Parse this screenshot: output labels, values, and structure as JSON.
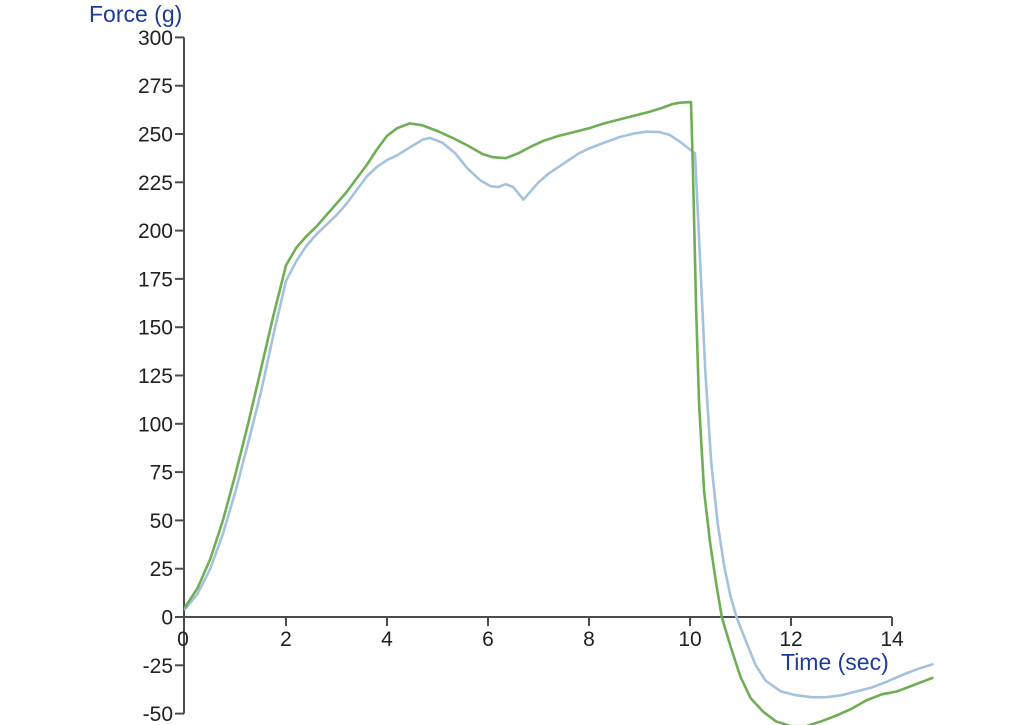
{
  "chart_data": {
    "type": "line",
    "title": "",
    "ylabel": "Force (g)",
    "xlabel": "Time (sec)",
    "label_color": "#1e3c96",
    "axis_color": "#4b4c4e",
    "tick_label_color": "#232021",
    "background_color": "#ffffff",
    "grid": false,
    "legend": "none",
    "xlim": [
      0,
      14.8
    ],
    "ylim": [
      -50,
      300
    ],
    "x_ticks": [
      0,
      2,
      4,
      6,
      8,
      10,
      12,
      14
    ],
    "y_ticks": [
      -50,
      -25,
      0,
      25,
      50,
      75,
      100,
      125,
      150,
      175,
      200,
      225,
      250,
      275,
      300
    ],
    "x_axis_at_y": 0,
    "series": [
      {
        "name": "blue-trace",
        "color": "#a5c2dd",
        "points": [
          [
            0,
            4
          ],
          [
            0.25,
            12
          ],
          [
            0.5,
            25
          ],
          [
            0.75,
            43
          ],
          [
            1,
            65
          ],
          [
            1.25,
            90
          ],
          [
            1.5,
            116
          ],
          [
            1.75,
            146
          ],
          [
            2,
            174
          ],
          [
            2.2,
            184
          ],
          [
            2.4,
            192
          ],
          [
            2.6,
            198
          ],
          [
            2.8,
            203
          ],
          [
            3,
            208
          ],
          [
            3.2,
            214
          ],
          [
            3.4,
            221
          ],
          [
            3.6,
            228
          ],
          [
            3.8,
            233
          ],
          [
            4,
            236.5
          ],
          [
            4.2,
            239
          ],
          [
            4.45,
            243
          ],
          [
            4.7,
            247
          ],
          [
            4.85,
            248
          ],
          [
            5.1,
            245.5
          ],
          [
            5.35,
            240
          ],
          [
            5.6,
            232
          ],
          [
            5.85,
            226
          ],
          [
            6.05,
            223
          ],
          [
            6.2,
            222.5
          ],
          [
            6.35,
            224
          ],
          [
            6.5,
            222.5
          ],
          [
            6.7,
            216
          ],
          [
            6.85,
            220.5
          ],
          [
            7,
            225
          ],
          [
            7.2,
            229.5
          ],
          [
            7.4,
            233
          ],
          [
            7.6,
            236.5
          ],
          [
            7.8,
            240
          ],
          [
            8,
            242.5
          ],
          [
            8.3,
            245.5
          ],
          [
            8.6,
            248.4
          ],
          [
            8.9,
            250.3
          ],
          [
            9.15,
            251.2
          ],
          [
            9.4,
            251
          ],
          [
            9.6,
            249.5
          ],
          [
            9.8,
            246
          ],
          [
            10,
            242
          ],
          [
            10.1,
            240
          ],
          [
            10.2,
            185
          ],
          [
            10.3,
            128
          ],
          [
            10.42,
            80
          ],
          [
            10.55,
            48
          ],
          [
            10.68,
            26
          ],
          [
            10.8,
            11
          ],
          [
            10.92,
            0
          ],
          [
            11.1,
            -12
          ],
          [
            11.3,
            -25
          ],
          [
            11.5,
            -33
          ],
          [
            11.8,
            -38.5
          ],
          [
            12.1,
            -40.5
          ],
          [
            12.4,
            -41.5
          ],
          [
            12.7,
            -41.5
          ],
          [
            13,
            -40.5
          ],
          [
            13.3,
            -38.5
          ],
          [
            13.6,
            -36.5
          ],
          [
            13.9,
            -33.5
          ],
          [
            14.2,
            -30
          ],
          [
            14.5,
            -27
          ],
          [
            14.8,
            -24.5
          ]
        ]
      },
      {
        "name": "green-trace",
        "color": "#6fae55",
        "points": [
          [
            0,
            5
          ],
          [
            0.25,
            15
          ],
          [
            0.5,
            30
          ],
          [
            0.75,
            50
          ],
          [
            1,
            74
          ],
          [
            1.25,
            100
          ],
          [
            1.5,
            128
          ],
          [
            1.75,
            156
          ],
          [
            2,
            182
          ],
          [
            2.2,
            191
          ],
          [
            2.4,
            197
          ],
          [
            2.6,
            202
          ],
          [
            2.8,
            208
          ],
          [
            3,
            214
          ],
          [
            3.2,
            220
          ],
          [
            3.4,
            227
          ],
          [
            3.6,
            234
          ],
          [
            3.8,
            242
          ],
          [
            4,
            249
          ],
          [
            4.2,
            253
          ],
          [
            4.45,
            255.5
          ],
          [
            4.7,
            254.5
          ],
          [
            5,
            251.5
          ],
          [
            5.3,
            248
          ],
          [
            5.6,
            244
          ],
          [
            5.9,
            239.5
          ],
          [
            6.1,
            238
          ],
          [
            6.35,
            237.5
          ],
          [
            6.6,
            240
          ],
          [
            6.85,
            243.5
          ],
          [
            7.1,
            246.5
          ],
          [
            7.4,
            249
          ],
          [
            7.7,
            251
          ],
          [
            8,
            253
          ],
          [
            8.3,
            255.5
          ],
          [
            8.6,
            257.5
          ],
          [
            8.9,
            259.5
          ],
          [
            9.2,
            261.5
          ],
          [
            9.45,
            263.5
          ],
          [
            9.65,
            265.5
          ],
          [
            9.8,
            266.2
          ],
          [
            10.02,
            266.5
          ],
          [
            10.06,
            230
          ],
          [
            10.12,
            160
          ],
          [
            10.18,
            110
          ],
          [
            10.28,
            65
          ],
          [
            10.4,
            38
          ],
          [
            10.52,
            17
          ],
          [
            10.63,
            0
          ],
          [
            10.8,
            -15
          ],
          [
            11,
            -31
          ],
          [
            11.2,
            -42
          ],
          [
            11.45,
            -49
          ],
          [
            11.7,
            -54
          ],
          [
            12,
            -56.5
          ],
          [
            12.3,
            -56.5
          ],
          [
            12.6,
            -54
          ],
          [
            12.9,
            -51
          ],
          [
            13.2,
            -47.5
          ],
          [
            13.5,
            -43
          ],
          [
            13.8,
            -40
          ],
          [
            14.1,
            -38.5
          ],
          [
            14.4,
            -35.5
          ],
          [
            14.65,
            -33
          ],
          [
            14.8,
            -31.5
          ]
        ]
      }
    ]
  }
}
